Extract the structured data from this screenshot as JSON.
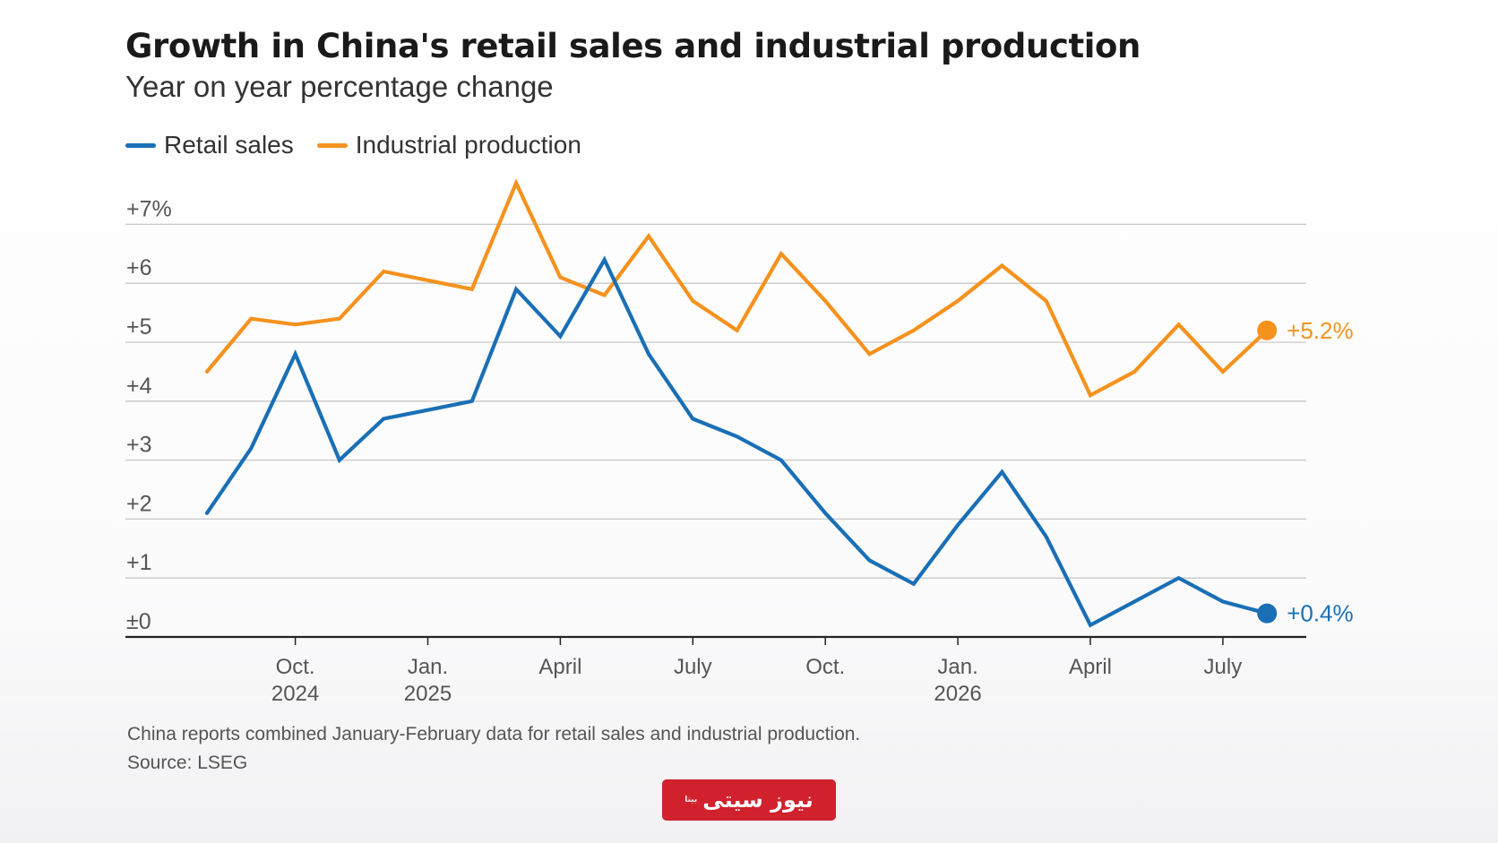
{
  "title": "Growth in China's retail sales and industrial production",
  "subtitle": "Year on year percentage change",
  "legend": [
    {
      "label": "Retail sales",
      "color": "#1a6fb5"
    },
    {
      "label": "Industrial production",
      "color": "#f5921e"
    }
  ],
  "footnote": "China reports combined January-February data for retail sales and industrial production.",
  "source": "Source: LSEG",
  "logo": {
    "text": "نیوز سیتی",
    "tag": "بیتا"
  },
  "colors": {
    "retail": "#1a6fb5",
    "industrial": "#f5921e",
    "grid": "#c8c8c8",
    "axis": "#222222",
    "tick_text": "#555555"
  },
  "chart_data": {
    "type": "line",
    "x": [
      "2024-08",
      "2024-09",
      "2024-10",
      "2024-11",
      "2024-12",
      "2025-01",
      "2025-02",
      "2025-03",
      "2025-04",
      "2025-05",
      "2025-06",
      "2025-07",
      "2025-08",
      "2025-09",
      "2025-10",
      "2025-11",
      "2025-12",
      "2026-01",
      "2026-02",
      "2026-03",
      "2026-04",
      "2026-05",
      "2026-06",
      "2026-07",
      "2026-08"
    ],
    "series": [
      {
        "name": "Retail sales",
        "color": "#1a6fb5",
        "values": [
          2.1,
          3.2,
          4.8,
          3.0,
          3.7,
          3.85,
          4.0,
          5.9,
          5.1,
          6.4,
          4.8,
          3.7,
          3.4,
          3.0,
          2.1,
          1.3,
          0.9,
          1.9,
          2.8,
          1.7,
          0.2,
          0.6,
          1.0,
          0.6,
          0.4
        ],
        "end_label": "+0.4%"
      },
      {
        "name": "Industrial production",
        "color": "#f5921e",
        "values": [
          4.5,
          5.4,
          5.3,
          5.4,
          6.2,
          6.05,
          5.9,
          7.7,
          6.1,
          5.8,
          6.8,
          5.7,
          5.2,
          6.5,
          5.7,
          4.8,
          5.2,
          5.7,
          6.3,
          5.7,
          4.1,
          4.5,
          5.3,
          4.5,
          5.2
        ],
        "end_label": "+5.2%"
      }
    ],
    "y_ticks": [
      {
        "value": 0,
        "label": "±0"
      },
      {
        "value": 1,
        "label": "+1"
      },
      {
        "value": 2,
        "label": "+2"
      },
      {
        "value": 3,
        "label": "+3"
      },
      {
        "value": 4,
        "label": "+4"
      },
      {
        "value": 5,
        "label": "+5"
      },
      {
        "value": 6,
        "label": "+6"
      },
      {
        "value": 7,
        "label": "+7%"
      }
    ],
    "x_ticks": [
      {
        "index": 2,
        "label": "Oct.",
        "sublabel": "2024"
      },
      {
        "index": 5,
        "label": "Jan.",
        "sublabel": "2025"
      },
      {
        "index": 8,
        "label": "April",
        "sublabel": ""
      },
      {
        "index": 11,
        "label": "July",
        "sublabel": ""
      },
      {
        "index": 14,
        "label": "Oct.",
        "sublabel": ""
      },
      {
        "index": 17,
        "label": "Jan.",
        "sublabel": "2026"
      },
      {
        "index": 20,
        "label": "April",
        "sublabel": ""
      },
      {
        "index": 23,
        "label": "July",
        "sublabel": ""
      }
    ],
    "ylim": [
      0,
      7.8
    ],
    "grid": true,
    "legend_position": "top-left"
  }
}
